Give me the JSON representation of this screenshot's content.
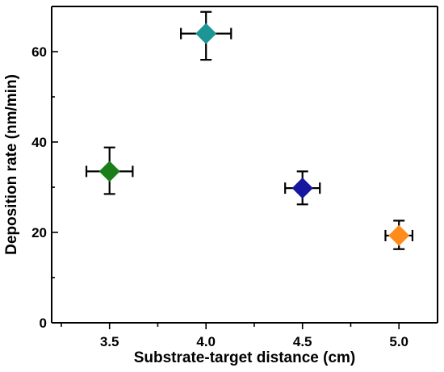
{
  "chart_data": {
    "type": "scatter",
    "title": "",
    "xlabel": "Substrate-target distance (cm)",
    "ylabel": "Deposition rate (nm/min)",
    "xlim": [
      3.2,
      5.2
    ],
    "ylim": [
      0,
      70
    ],
    "x_ticks": [
      3.5,
      4.0,
      4.5,
      5.0
    ],
    "x_tick_labels": [
      "3.5",
      "4.0",
      "4.5",
      "5.0"
    ],
    "y_ticks": [
      0,
      20,
      40,
      60
    ],
    "y_tick_labels": [
      "0",
      "20",
      "40",
      "60"
    ],
    "grid": false,
    "legend": false,
    "points": [
      {
        "x": 3.5,
        "y": 33.5,
        "x_err": 0.12,
        "y_err_plus": 5.3,
        "y_err_minus": 5.0,
        "color": "#1a7f1a"
      },
      {
        "x": 4.0,
        "y": 64.0,
        "x_err": 0.13,
        "y_err_plus": 4.8,
        "y_err_minus": 5.8,
        "color": "#1e9595"
      },
      {
        "x": 4.5,
        "y": 29.8,
        "x_err": 0.09,
        "y_err_plus": 3.7,
        "y_err_minus": 3.6,
        "color": "#1616a0"
      },
      {
        "x": 5.0,
        "y": 19.3,
        "x_err": 0.07,
        "y_err_plus": 3.3,
        "y_err_minus": 3.0,
        "color": "#ff8c1a"
      }
    ]
  }
}
